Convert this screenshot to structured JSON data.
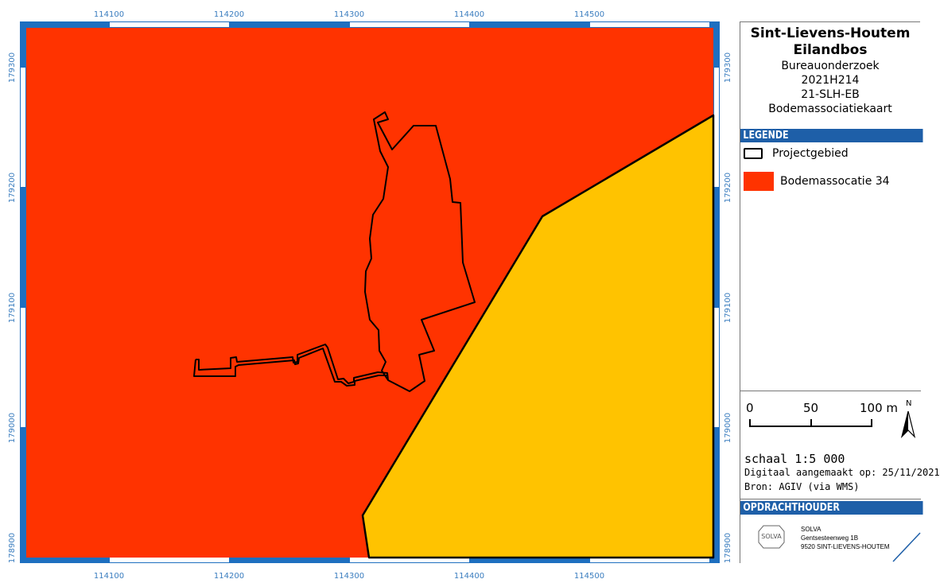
{
  "map": {
    "x_ticks": [
      "114100",
      "114200",
      "114300",
      "114400",
      "114500"
    ],
    "y_ticks": [
      "179300",
      "179200",
      "179100",
      "179000",
      "178900"
    ],
    "colors": {
      "association_34": "#ff3300",
      "other_association": "#ffc300",
      "frame_blue": "#1e6fc0",
      "project_outline": "#000000"
    }
  },
  "panel": {
    "title_line1": "Sint-Lievens-Houtem",
    "title_line2": "Eilandbos",
    "sub_line1": "Bureauonderzoek",
    "sub_line2": "2021H214",
    "sub_line3": "21-SLH-EB",
    "sub_line4": "Bodemassociatiekaart",
    "legend_header": "LEGENDE",
    "legend_items": [
      {
        "label": "Projectgebied",
        "symbol": "outline",
        "color": "#000000"
      },
      {
        "label": "Bodemassocatie 34",
        "symbol": "fill",
        "color": "#ff3300"
      }
    ],
    "scalebar": {
      "labels": [
        "0",
        "50",
        "100 m"
      ]
    },
    "north_label": "N",
    "scale_text": "schaal 1:5 000",
    "created_text": "Digitaal aangemaakt op: 25/11/2021",
    "source_text": "Bron: AGIV (via WMS)",
    "client_header": "OPDRACHTHOUDER",
    "client_logo": "SOLVA",
    "client_name": "SOLVA",
    "client_street": "Gentsesteenweg 1B",
    "client_city": "9520 SINT-LIEVENS-HOUTEM"
  }
}
